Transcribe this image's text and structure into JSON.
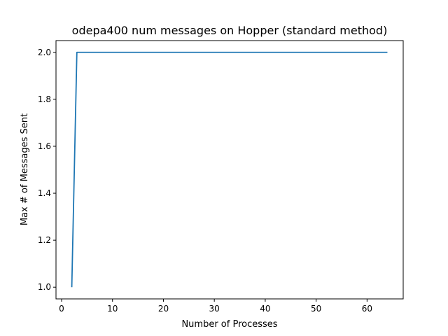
{
  "chart_data": {
    "type": "line",
    "title": "odepa400 num messages on Hopper (standard method)",
    "xlabel": "Number of Processes",
    "ylabel": "Max # of Messages Sent",
    "xlim": [
      -1.1,
      67.1
    ],
    "ylim": [
      0.95,
      2.05
    ],
    "xticks": [
      0,
      10,
      20,
      30,
      40,
      50,
      60
    ],
    "yticks": [
      1.0,
      1.2,
      1.4,
      1.6,
      1.8,
      2.0
    ],
    "grid": false,
    "series": [
      {
        "color": "#1f77b4",
        "x": [
          2,
          3,
          4,
          8,
          16,
          32,
          64
        ],
        "y": [
          1.0,
          2.0,
          2.0,
          2.0,
          2.0,
          2.0,
          2.0
        ]
      }
    ]
  }
}
